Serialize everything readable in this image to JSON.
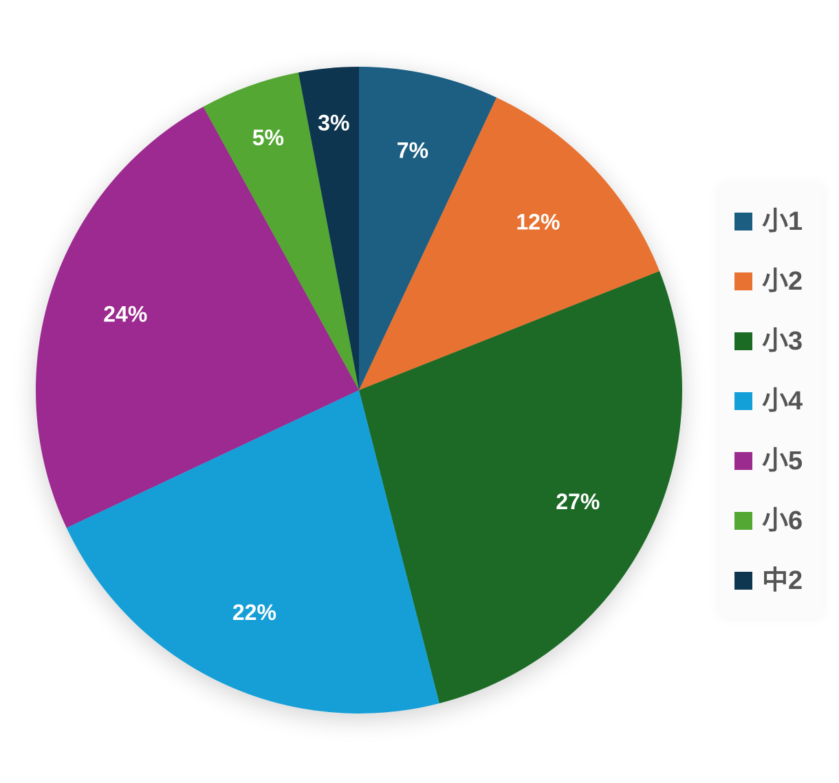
{
  "chart_data": {
    "type": "pie",
    "title": "",
    "categories": [
      "小1",
      "小2",
      "小3",
      "小4",
      "小5",
      "小6",
      "中2"
    ],
    "values": [
      7,
      12,
      27,
      22,
      24,
      5,
      3
    ],
    "labels": [
      "7%",
      "12%",
      "27%",
      "22%",
      "24%",
      "5%",
      "3%"
    ],
    "colors": [
      "#1b5e82",
      "#e87232",
      "#1b6b25",
      "#139fd7",
      "#9c2b90",
      "#53a733",
      "#0e3650"
    ],
    "start_angle": "12 o'clock",
    "direction": "clockwise",
    "legend_position": "right",
    "label_color": "#ffffff"
  }
}
